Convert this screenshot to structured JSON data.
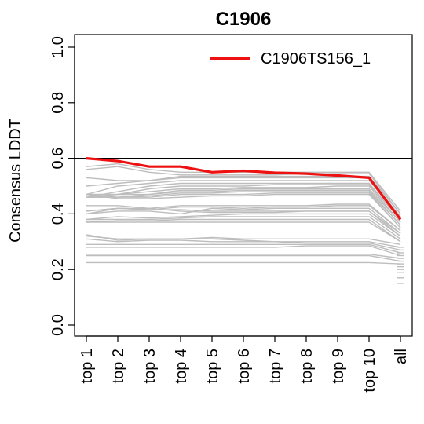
{
  "chart_data": {
    "type": "line",
    "title": "C1906",
    "xlabel": "",
    "ylabel": "Consensus LDDT",
    "categories": [
      "top 1",
      "top 2",
      "top 3",
      "top 4",
      "top 5",
      "top 6",
      "top 7",
      "top 8",
      "top 9",
      "top 10",
      "all"
    ],
    "ylim": [
      0.0,
      1.0
    ],
    "yticks": [
      "0.0",
      "0.2",
      "0.4",
      "0.6",
      "0.8",
      "1.0"
    ],
    "reference_line": 0.6,
    "legend": {
      "position": "top-right",
      "entries": [
        "C1906TS156_1"
      ]
    },
    "highlight": {
      "name": "C1906TS156_1",
      "color": "#ee1111",
      "values": [
        0.6,
        0.59,
        0.57,
        0.57,
        0.55,
        0.555,
        0.548,
        0.545,
        0.538,
        0.53,
        0.38
      ]
    },
    "background_color": "#bdbdbd",
    "background_series": [
      [
        0.57,
        0.58,
        0.56,
        0.55,
        0.55,
        0.55,
        0.55,
        0.55,
        0.55,
        0.55,
        0.41
      ],
      [
        0.56,
        0.57,
        0.55,
        0.54,
        0.54,
        0.54,
        0.54,
        0.545,
        0.545,
        0.545,
        0.4
      ],
      [
        0.53,
        0.52,
        0.52,
        0.535,
        0.535,
        0.535,
        0.535,
        0.535,
        0.535,
        0.535,
        0.4
      ],
      [
        0.5,
        0.51,
        0.52,
        0.53,
        0.53,
        0.53,
        0.53,
        0.53,
        0.53,
        0.53,
        0.39
      ],
      [
        0.47,
        0.5,
        0.51,
        0.52,
        0.52,
        0.52,
        0.52,
        0.52,
        0.52,
        0.52,
        0.39
      ],
      [
        0.46,
        0.48,
        0.5,
        0.51,
        0.51,
        0.51,
        0.51,
        0.51,
        0.51,
        0.51,
        0.38
      ],
      [
        0.47,
        0.47,
        0.49,
        0.5,
        0.5,
        0.5,
        0.505,
        0.505,
        0.505,
        0.505,
        0.38
      ],
      [
        0.46,
        0.47,
        0.48,
        0.49,
        0.49,
        0.495,
        0.495,
        0.495,
        0.5,
        0.5,
        0.37
      ],
      [
        0.47,
        0.47,
        0.47,
        0.485,
        0.485,
        0.49,
        0.49,
        0.49,
        0.49,
        0.49,
        0.37
      ],
      [
        0.46,
        0.46,
        0.47,
        0.48,
        0.48,
        0.485,
        0.485,
        0.485,
        0.485,
        0.485,
        0.36
      ],
      [
        0.46,
        0.46,
        0.465,
        0.475,
        0.475,
        0.48,
        0.48,
        0.48,
        0.48,
        0.48,
        0.36
      ],
      [
        0.47,
        0.46,
        0.46,
        0.47,
        0.47,
        0.47,
        0.475,
        0.475,
        0.475,
        0.475,
        0.35
      ],
      [
        0.47,
        0.455,
        0.455,
        0.46,
        0.465,
        0.465,
        0.47,
        0.47,
        0.47,
        0.47,
        0.35
      ],
      [
        0.4,
        0.42,
        0.42,
        0.43,
        0.43,
        0.43,
        0.43,
        0.43,
        0.435,
        0.435,
        0.34
      ],
      [
        0.41,
        0.42,
        0.415,
        0.425,
        0.425,
        0.42,
        0.425,
        0.425,
        0.43,
        0.43,
        0.34
      ],
      [
        0.4,
        0.41,
        0.41,
        0.4,
        0.42,
        0.415,
        0.42,
        0.42,
        0.42,
        0.42,
        0.33
      ],
      [
        0.41,
        0.42,
        0.415,
        0.415,
        0.41,
        0.41,
        0.41,
        0.41,
        0.41,
        0.41,
        0.33
      ],
      [
        0.43,
        0.43,
        0.42,
        0.41,
        0.405,
        0.405,
        0.405,
        0.41,
        0.41,
        0.41,
        0.32
      ],
      [
        0.38,
        0.39,
        0.385,
        0.39,
        0.395,
        0.4,
        0.4,
        0.4,
        0.4,
        0.4,
        0.32
      ],
      [
        0.38,
        0.38,
        0.38,
        0.385,
        0.39,
        0.39,
        0.39,
        0.39,
        0.39,
        0.39,
        0.31
      ],
      [
        0.37,
        0.375,
        0.375,
        0.38,
        0.38,
        0.38,
        0.38,
        0.38,
        0.38,
        0.38,
        0.3
      ],
      [
        0.37,
        0.37,
        0.37,
        0.37,
        0.37,
        0.37,
        0.37,
        0.37,
        0.37,
        0.37,
        0.3
      ],
      [
        0.32,
        0.31,
        0.31,
        0.31,
        0.315,
        0.31,
        0.31,
        0.31,
        0.31,
        0.31,
        0.29
      ],
      [
        0.325,
        0.305,
        0.31,
        0.31,
        0.31,
        0.305,
        0.3,
        0.3,
        0.3,
        0.3,
        0.28
      ],
      [
        0.31,
        0.3,
        0.305,
        0.305,
        0.3,
        0.3,
        0.3,
        0.295,
        0.295,
        0.295,
        0.27
      ],
      [
        0.29,
        0.29,
        0.29,
        0.29,
        0.29,
        0.29,
        0.29,
        0.29,
        0.29,
        0.29,
        0.26
      ],
      [
        0.28,
        0.28,
        0.28,
        0.28,
        0.28,
        0.28,
        0.28,
        0.285,
        0.285,
        0.285,
        0.25
      ],
      [
        0.255,
        0.255,
        0.255,
        0.255,
        0.255,
        0.255,
        0.255,
        0.255,
        0.255,
        0.255,
        0.24
      ],
      [
        0.25,
        0.25,
        0.25,
        0.25,
        0.25,
        0.25,
        0.25,
        0.25,
        0.25,
        0.25,
        0.23
      ],
      [
        0.225,
        0.225,
        0.225,
        0.225,
        0.225,
        0.225,
        0.225,
        0.225,
        0.225,
        0.225,
        0.22
      ]
    ],
    "all_extra_points": [
      0.15,
      0.17,
      0.19,
      0.2,
      0.21,
      0.22,
      0.23,
      0.24,
      0.25,
      0.26,
      0.27,
      0.28
    ]
  }
}
